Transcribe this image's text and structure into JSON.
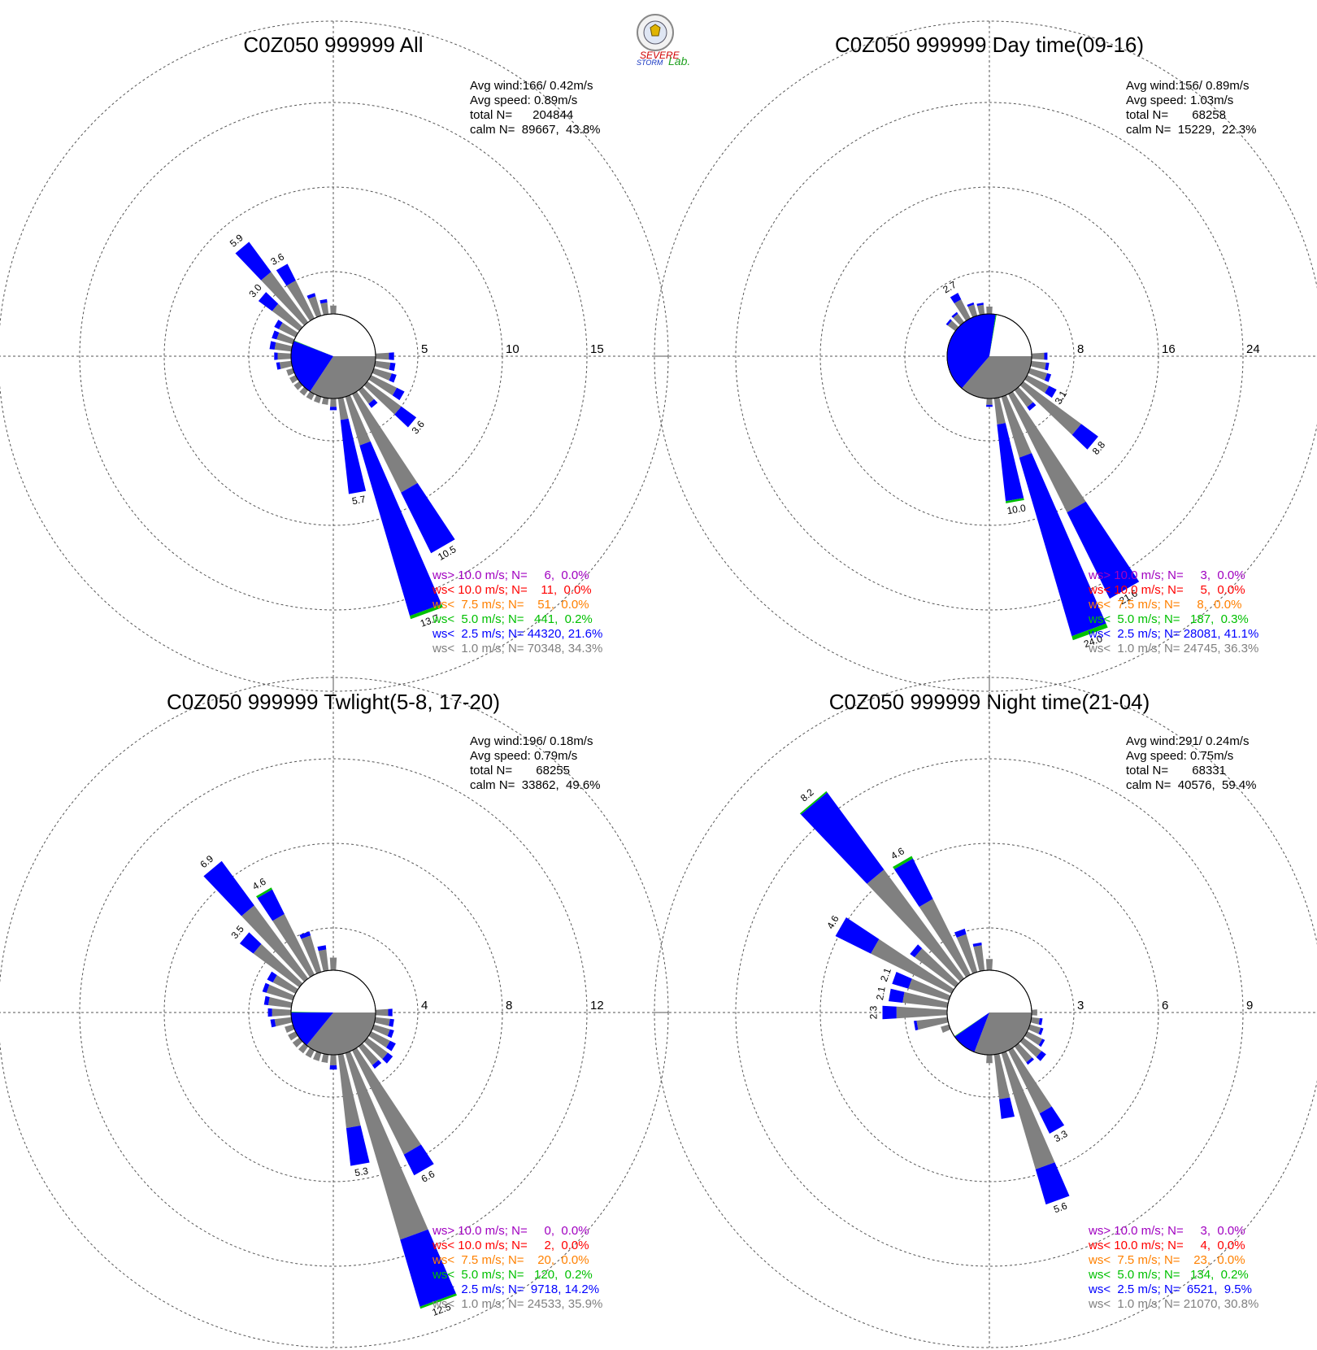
{
  "logo": {
    "line1": "SEVERE",
    "line2": "STORM",
    "line3": "Lab."
  },
  "colors": {
    "calm_white": "#ffffff",
    "lt1": "#808080",
    "lt2_5": "#0000ff",
    "lt5": "#00c000",
    "lt7_5": "#ff8000",
    "lt10": "#ff0000",
    "gt10": "#a000c0"
  },
  "chart_data": [
    {
      "type": "wind_rose",
      "title": "C0Z050 999999 All",
      "stats": [
        "Avg wind:166/ 0.42m/s",
        "Avg speed: 0.89m/s",
        "total N=      204844",
        "calm N=  89667,  43.8%"
      ],
      "rings": [
        "5",
        "10",
        "15"
      ],
      "ring_max": 15,
      "calm_pct": 43.8,
      "pie": [
        {
          "cls": "lt1",
          "pct": 34.3
        },
        {
          "cls": "lt2_5",
          "pct": 21.6
        },
        {
          "cls": "lt5",
          "pct": 0.2
        }
      ],
      "sectors": [
        {
          "dir": 150,
          "lt1": 6.5,
          "lt2_5": 4.0,
          "label": "10.5"
        },
        {
          "dir": 160,
          "lt1": 3.0,
          "lt2_5": 10.5,
          "lt5": 0.2,
          "label": "13.7"
        },
        {
          "dir": 170,
          "lt1": 1.3,
          "lt2_5": 4.4,
          "label": "5.7"
        },
        {
          "dir": 130,
          "lt1": 2.5,
          "lt2_5": 1.1,
          "label": "3.6"
        },
        {
          "dir": 320,
          "lt1": 3.7,
          "lt2_5": 2.2,
          "label": "5.9"
        },
        {
          "dir": 330,
          "lt1": 2.5,
          "lt2_5": 1.1,
          "label": "3.6"
        },
        {
          "dir": 310,
          "lt1": 2.0,
          "lt2_5": 1.0,
          "label": "3.0"
        },
        {
          "dir": 90,
          "lt1": 0.8,
          "lt2_5": 0.3
        },
        {
          "dir": 100,
          "lt1": 0.9,
          "lt2_5": 0.3
        },
        {
          "dir": 110,
          "lt1": 1.1,
          "lt2_5": 0.3
        },
        {
          "dir": 120,
          "lt1": 1.7,
          "lt2_5": 0.5
        },
        {
          "dir": 140,
          "lt1": 1.0,
          "lt2_5": 0.3
        },
        {
          "dir": 180,
          "lt1": 0.5,
          "lt2_5": 0.2
        },
        {
          "dir": 190,
          "lt1": 0.4
        },
        {
          "dir": 200,
          "lt1": 0.4
        },
        {
          "dir": 210,
          "lt1": 0.4
        },
        {
          "dir": 220,
          "lt1": 0.4
        },
        {
          "dir": 230,
          "lt1": 0.4
        },
        {
          "dir": 240,
          "lt1": 0.4
        },
        {
          "dir": 250,
          "lt1": 0.4
        },
        {
          "dir": 260,
          "lt1": 0.7,
          "lt2_5": 0.2
        },
        {
          "dir": 270,
          "lt1": 0.8,
          "lt2_5": 0.2
        },
        {
          "dir": 280,
          "lt1": 1.0,
          "lt2_5": 0.3
        },
        {
          "dir": 290,
          "lt1": 1.0,
          "lt2_5": 0.3
        },
        {
          "dir": 300,
          "lt1": 1.1,
          "lt2_5": 0.3
        },
        {
          "dir": 340,
          "lt1": 1.2,
          "lt2_5": 0.2
        },
        {
          "dir": 350,
          "lt1": 0.7,
          "lt2_5": 0.2
        },
        {
          "dir": 360,
          "lt1": 0.5
        }
      ],
      "legend": [
        {
          "cls": "gt10",
          "text": "ws> 10.0 m/s; N=     6,  0.0%"
        },
        {
          "cls": "lt10",
          "text": "ws< 10.0 m/s; N=    11,  0.0%"
        },
        {
          "cls": "lt7_5",
          "text": "ws<  7.5 m/s; N=    51,  0.0%"
        },
        {
          "cls": "lt5",
          "text": "ws<  5.0 m/s; N=   441,  0.2%"
        },
        {
          "cls": "lt2_5",
          "text": "ws<  2.5 m/s; N= 44320, 21.6%"
        },
        {
          "cls": "lt1",
          "text": "ws<  1.0 m/s; N= 70348, 34.3%"
        }
      ]
    },
    {
      "type": "wind_rose",
      "title": "C0Z050 999999 Day time(09-16)",
      "stats": [
        "Avg wind:156/ 0.89m/s",
        "Avg speed: 1.03m/s",
        "total N=       68258",
        "calm N=  15229,  22.3%"
      ],
      "rings": [
        "8",
        "16",
        "24"
      ],
      "ring_max": 24,
      "calm_pct": 22.3,
      "pie": [
        {
          "cls": "lt1",
          "pct": 36.3
        },
        {
          "cls": "lt2_5",
          "pct": 41.1
        },
        {
          "cls": "lt5",
          "pct": 0.3
        }
      ],
      "sectors": [
        {
          "dir": 150,
          "lt1": 12.5,
          "lt2_5": 9.1,
          "label": "21.6"
        },
        {
          "dir": 160,
          "lt1": 6.0,
          "lt2_5": 17.6,
          "lt5": 0.4,
          "label": "24.0"
        },
        {
          "dir": 170,
          "lt1": 2.5,
          "lt2_5": 7.3,
          "lt5": 0.2,
          "label": "10.0"
        },
        {
          "dir": 130,
          "lt1": 6.8,
          "lt2_5": 2.0,
          "label": "8.8"
        },
        {
          "dir": 120,
          "lt1": 2.3,
          "lt2_5": 0.8,
          "label": "3.1"
        },
        {
          "dir": 330,
          "lt1": 2.0,
          "lt2_5": 0.7,
          "label": "2.7"
        },
        {
          "dir": 90,
          "lt1": 1.2,
          "lt2_5": 0.3
        },
        {
          "dir": 100,
          "lt1": 1.4,
          "lt2_5": 0.3
        },
        {
          "dir": 110,
          "lt1": 1.7,
          "lt2_5": 0.4
        },
        {
          "dir": 140,
          "lt1": 2.0,
          "lt2_5": 0.4
        },
        {
          "dir": 180,
          "lt1": 0.6,
          "lt2_5": 0.2
        },
        {
          "dir": 310,
          "lt1": 0.9,
          "lt2_5": 0.2
        },
        {
          "dir": 320,
          "lt1": 1.0,
          "lt2_5": 0.2
        },
        {
          "dir": 340,
          "lt1": 1.1,
          "lt2_5": 0.2
        },
        {
          "dir": 350,
          "lt1": 0.9,
          "lt2_5": 0.2
        },
        {
          "dir": 360,
          "lt1": 0.7
        }
      ],
      "legend": [
        {
          "cls": "gt10",
          "text": "ws> 10.0 m/s; N=     3,  0.0%"
        },
        {
          "cls": "lt10",
          "text": "ws< 10.0 m/s; N=     5,  0.0%"
        },
        {
          "cls": "lt7_5",
          "text": "ws<  7.5 m/s; N=     8,  0.0%"
        },
        {
          "cls": "lt5",
          "text": "ws<  5.0 m/s; N=   187,  0.3%"
        },
        {
          "cls": "lt2_5",
          "text": "ws<  2.5 m/s; N= 28081, 41.1%"
        },
        {
          "cls": "lt1",
          "text": "ws<  1.0 m/s; N= 24745, 36.3%"
        }
      ]
    },
    {
      "type": "wind_rose",
      "title": "C0Z050 999999 Twlight(5-8, 17-20)",
      "stats": [
        "Avg wind:196/ 0.18m/s",
        "Avg speed: 0.79m/s",
        "total N=       68255",
        "calm N=  33862,  49.6%"
      ],
      "rings": [
        "4",
        "8",
        "12"
      ],
      "ring_max": 12,
      "calm_pct": 49.6,
      "pie": [
        {
          "cls": "lt1",
          "pct": 35.9
        },
        {
          "cls": "lt2_5",
          "pct": 14.2
        },
        {
          "cls": "lt5",
          "pct": 0.2
        }
      ],
      "sectors": [
        {
          "dir": 160,
          "lt1": 9.2,
          "lt2_5": 3.3,
          "lt5": 0.1,
          "label": "12.5"
        },
        {
          "dir": 150,
          "lt1": 5.5,
          "lt2_5": 1.1,
          "label": "6.6"
        },
        {
          "dir": 170,
          "lt1": 3.5,
          "lt2_5": 1.8,
          "label": "5.3"
        },
        {
          "dir": 320,
          "lt1": 4.3,
          "lt2_5": 2.6,
          "label": "6.9"
        },
        {
          "dir": 330,
          "lt1": 3.2,
          "lt2_5": 1.3,
          "lt5": 0.1,
          "label": "4.6"
        },
        {
          "dir": 310,
          "lt1": 2.7,
          "lt2_5": 0.8,
          "label": "3.5"
        },
        {
          "dir": 90,
          "lt1": 0.6,
          "lt2_5": 0.2
        },
        {
          "dir": 100,
          "lt1": 0.7,
          "lt2_5": 0.2
        },
        {
          "dir": 110,
          "lt1": 0.8,
          "lt2_5": 0.2
        },
        {
          "dir": 120,
          "lt1": 1.0,
          "lt2_5": 0.3
        },
        {
          "dir": 130,
          "lt1": 1.2,
          "lt2_5": 0.3
        },
        {
          "dir": 140,
          "lt1": 1.1,
          "lt2_5": 0.2
        },
        {
          "dir": 180,
          "lt1": 0.5,
          "lt2_5": 0.2
        },
        {
          "dir": 190,
          "lt1": 0.4
        },
        {
          "dir": 200,
          "lt1": 0.4
        },
        {
          "dir": 210,
          "lt1": 0.4
        },
        {
          "dir": 220,
          "lt1": 0.4
        },
        {
          "dir": 230,
          "lt1": 0.4
        },
        {
          "dir": 240,
          "lt1": 0.4
        },
        {
          "dir": 250,
          "lt1": 0.4
        },
        {
          "dir": 260,
          "lt1": 0.8,
          "lt2_5": 0.2
        },
        {
          "dir": 270,
          "lt1": 0.9,
          "lt2_5": 0.2
        },
        {
          "dir": 280,
          "lt1": 1.1,
          "lt2_5": 0.2
        },
        {
          "dir": 290,
          "lt1": 1.3,
          "lt2_5": 0.2
        },
        {
          "dir": 300,
          "lt1": 1.2,
          "lt2_5": 0.3
        },
        {
          "dir": 340,
          "lt1": 1.8,
          "lt2_5": 0.2
        },
        {
          "dir": 350,
          "lt1": 1.0,
          "lt2_5": 0.2
        },
        {
          "dir": 360,
          "lt1": 0.6
        }
      ],
      "legend": [
        {
          "cls": "gt10",
          "text": "ws> 10.0 m/s; N=     0,  0.0%"
        },
        {
          "cls": "lt10",
          "text": "ws< 10.0 m/s; N=     2,  0.0%"
        },
        {
          "cls": "lt7_5",
          "text": "ws<  7.5 m/s; N=    20,  0.0%"
        },
        {
          "cls": "lt5",
          "text": "ws<  5.0 m/s; N=   120,  0.2%"
        },
        {
          "cls": "lt2_5",
          "text": "ws<  2.5 m/s; N=  9718, 14.2%"
        },
        {
          "cls": "lt1",
          "text": "ws<  1.0 m/s; N= 24533, 35.9%"
        }
      ]
    },
    {
      "type": "wind_rose",
      "title": "C0Z050 999999 Night time(21-04)",
      "stats": [
        "Avg wind:291/ 0.24m/s",
        "Avg speed: 0.75m/s",
        "total N=       68331",
        "calm N=  40576,  59.4%"
      ],
      "rings": [
        "3",
        "6",
        "9"
      ],
      "ring_max": 9,
      "calm_pct": 59.4,
      "pie": [
        {
          "cls": "lt1",
          "pct": 30.8
        },
        {
          "cls": "lt2_5",
          "pct": 9.5
        },
        {
          "cls": "lt5",
          "pct": 0.2
        }
      ],
      "sectors": [
        {
          "dir": 320,
          "lt1": 4.8,
          "lt2_5": 3.4,
          "lt5": 0.05,
          "label": "8.2"
        },
        {
          "dir": 330,
          "lt1": 3.0,
          "lt2_5": 1.6,
          "lt5": 0.1,
          "label": "4.6"
        },
        {
          "dir": 300,
          "lt1": 3.2,
          "lt2_5": 1.4,
          "label": "4.6"
        },
        {
          "dir": 290,
          "lt1": 1.5,
          "lt2_5": 0.6,
          "label": "2.1"
        },
        {
          "dir": 280,
          "lt1": 1.6,
          "lt2_5": 0.5,
          "label": "2.1"
        },
        {
          "dir": 270,
          "lt1": 1.8,
          "lt2_5": 0.5,
          "label": "2.3"
        },
        {
          "dir": 160,
          "lt1": 4.3,
          "lt2_5": 1.3,
          "label": "5.6"
        },
        {
          "dir": 150,
          "lt1": 2.5,
          "lt2_5": 0.8,
          "label": "3.3"
        },
        {
          "dir": 170,
          "lt1": 1.6,
          "lt2_5": 0.7
        },
        {
          "dir": 90,
          "lt1": 0.2
        },
        {
          "dir": 100,
          "lt1": 0.3,
          "lt2_5": 0.1
        },
        {
          "dir": 110,
          "lt1": 0.4,
          "lt2_5": 0.1
        },
        {
          "dir": 120,
          "lt1": 0.6,
          "lt2_5": 0.1
        },
        {
          "dir": 130,
          "lt1": 0.8,
          "lt2_5": 0.2
        },
        {
          "dir": 140,
          "lt1": 0.7,
          "lt2_5": 0.1
        },
        {
          "dir": 180,
          "lt1": 0.3
        },
        {
          "dir": 250,
          "lt1": 0.3
        },
        {
          "dir": 260,
          "lt1": 1.1,
          "lt2_5": 0.1
        },
        {
          "dir": 310,
          "lt1": 1.8,
          "lt2_5": 0.2
        },
        {
          "dir": 340,
          "lt1": 1.4,
          "lt2_5": 0.2
        },
        {
          "dir": 350,
          "lt1": 0.9,
          "lt2_5": 0.1
        },
        {
          "dir": 360,
          "lt1": 0.4
        }
      ],
      "legend": [
        {
          "cls": "gt10",
          "text": "ws> 10.0 m/s; N=     3,  0.0%"
        },
        {
          "cls": "lt10",
          "text": "ws< 10.0 m/s; N=     4,  0.0%"
        },
        {
          "cls": "lt7_5",
          "text": "ws<  7.5 m/s; N=    23,  0.0%"
        },
        {
          "cls": "lt5",
          "text": "ws<  5.0 m/s; N=   134,  0.2%"
        },
        {
          "cls": "lt2_5",
          "text": "ws<  2.5 m/s; N=  6521,  9.5%"
        },
        {
          "cls": "lt1",
          "text": "ws<  1.0 m/s; N= 21070, 30.8%"
        }
      ]
    }
  ]
}
